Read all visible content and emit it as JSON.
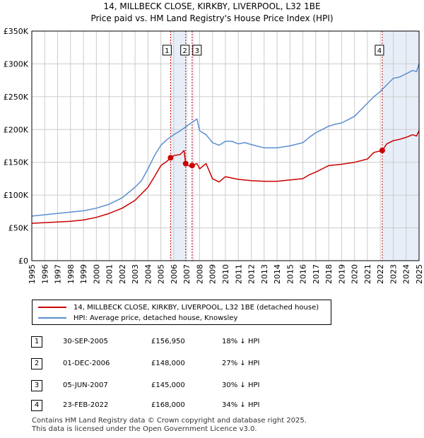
{
  "title_line1": "14, MILLBECK CLOSE, KIRKBY, LIVERPOOL, L32 1BE",
  "title_line2": "Price paid vs. HM Land Registry's House Price Index (HPI)",
  "colors": {
    "property": "#cc0000",
    "hpi": "#5b8fd0",
    "shade": "#e8eef8",
    "marker_line": "#cc0000"
  },
  "chart_data": {
    "type": "line",
    "xlim": [
      1995,
      2025
    ],
    "ylim": [
      0,
      350000
    ],
    "y_ticks": [
      0,
      50000,
      100000,
      150000,
      200000,
      250000,
      300000,
      350000
    ],
    "y_tick_labels": [
      "£0",
      "£50K",
      "£100K",
      "£150K",
      "£200K",
      "£250K",
      "£300K",
      "£350K"
    ],
    "x_ticks": [
      1995,
      1996,
      1997,
      1998,
      1999,
      2000,
      2001,
      2002,
      2003,
      2004,
      2005,
      2006,
      2007,
      2008,
      2009,
      2010,
      2011,
      2012,
      2013,
      2014,
      2015,
      2016,
      2017,
      2018,
      2019,
      2020,
      2021,
      2022,
      2023,
      2024,
      2025
    ],
    "shaded_ranges": [
      [
        2005.75,
        2006.92
      ],
      [
        2007.42,
        2007.58
      ],
      [
        2022.15,
        2025
      ]
    ],
    "series": [
      {
        "name": "14, MILLBECK CLOSE, KIRKBY, LIVERPOOL, L32 1BE (detached house)",
        "x": [
          1995,
          1996,
          1997,
          1998,
          1999,
          2000,
          2001,
          2002,
          2003,
          2004,
          2004.5,
          2005,
          2005.5,
          2005.75,
          2006,
          2006.5,
          2006.8,
          2006.92,
          2007.2,
          2007.42,
          2007.8,
          2008,
          2008.5,
          2009,
          2009.5,
          2010,
          2010.5,
          2011,
          2012,
          2013,
          2014,
          2015,
          2016,
          2016.5,
          2017,
          2017.5,
          2018,
          2019,
          2020,
          2021,
          2021.5,
          2022.15,
          2022.5,
          2023,
          2023.5,
          2024,
          2024.5,
          2024.8,
          2025
        ],
        "y": [
          57000,
          58000,
          59000,
          60000,
          62000,
          66000,
          72000,
          80000,
          92000,
          112000,
          128000,
          145000,
          152000,
          156950,
          160000,
          162000,
          168000,
          148000,
          144000,
          145000,
          148000,
          140000,
          148000,
          125000,
          120000,
          128000,
          126000,
          124000,
          122000,
          121000,
          121000,
          123000,
          125000,
          131000,
          135000,
          140000,
          145000,
          147000,
          150000,
          155000,
          165000,
          168000,
          178000,
          183000,
          185000,
          188000,
          192000,
          190000,
          198000
        ]
      },
      {
        "name": "HPI: Average price, detached house, Knowsley",
        "x": [
          1995,
          1996,
          1997,
          1998,
          1999,
          2000,
          2001,
          2002,
          2003,
          2003.5,
          2004,
          2004.5,
          2005,
          2005.5,
          2006,
          2006.5,
          2007,
          2007.5,
          2007.8,
          2008,
          2008.5,
          2009,
          2009.5,
          2010,
          2010.5,
          2011,
          2011.5,
          2012,
          2013,
          2014,
          2015,
          2016,
          2016.5,
          2017,
          2017.5,
          2018,
          2018.5,
          2019,
          2019.5,
          2020,
          2020.5,
          2021,
          2021.5,
          2022,
          2022.5,
          2023,
          2023.5,
          2024,
          2024.5,
          2024.8,
          2025
        ],
        "y": [
          68000,
          70000,
          72000,
          74000,
          76000,
          80000,
          86000,
          96000,
          112000,
          122000,
          140000,
          160000,
          176000,
          185000,
          192000,
          198000,
          205000,
          212000,
          216000,
          198000,
          192000,
          180000,
          176000,
          182000,
          182000,
          178000,
          180000,
          177000,
          172000,
          172000,
          175000,
          180000,
          188000,
          195000,
          200000,
          205000,
          208000,
          210000,
          215000,
          220000,
          230000,
          240000,
          250000,
          258000,
          268000,
          278000,
          280000,
          285000,
          290000,
          288000,
          300000
        ]
      }
    ],
    "markers": [
      {
        "label": "1",
        "x": 2005.75,
        "y": 156950
      },
      {
        "label": "2",
        "x": 2006.92,
        "y": 148000
      },
      {
        "label": "3",
        "x": 2007.42,
        "y": 145000
      },
      {
        "label": "4",
        "x": 2022.15,
        "y": 168000
      }
    ]
  },
  "legend": {
    "property": "14, MILLBECK CLOSE, KIRKBY, LIVERPOOL, L32 1BE (detached house)",
    "hpi": "HPI: Average price, detached house, Knowsley"
  },
  "transactions": [
    {
      "num": "1",
      "date": "30-SEP-2005",
      "price": "£156,950",
      "hpi": "18% ↓ HPI"
    },
    {
      "num": "2",
      "date": "01-DEC-2006",
      "price": "£148,000",
      "hpi": "27% ↓ HPI"
    },
    {
      "num": "3",
      "date": "05-JUN-2007",
      "price": "£145,000",
      "hpi": "30% ↓ HPI"
    },
    {
      "num": "4",
      "date": "23-FEB-2022",
      "price": "£168,000",
      "hpi": "34% ↓ HPI"
    }
  ],
  "footer_line1": "Contains HM Land Registry data © Crown copyright and database right 2025.",
  "footer_line2": "This data is licensed under the Open Government Licence v3.0."
}
